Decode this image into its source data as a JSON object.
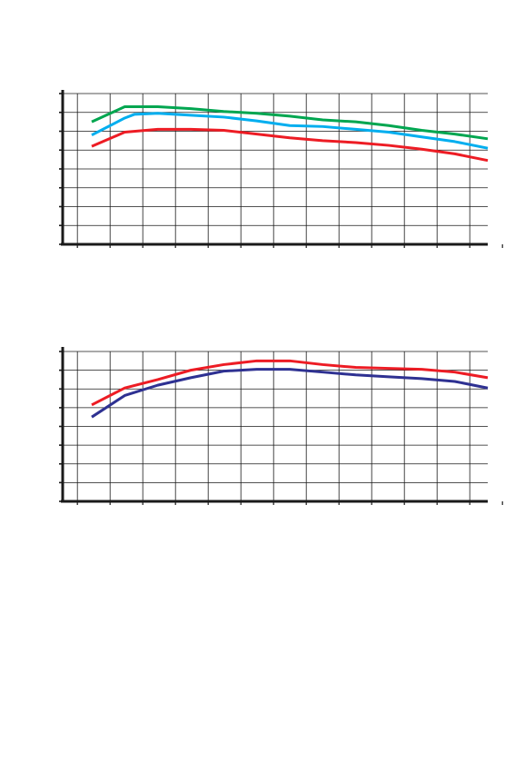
{
  "chart_data": [
    {
      "type": "line",
      "title": "",
      "xlabel": "",
      "ylabel": "",
      "grid": true,
      "x_ticks": 14,
      "ylim": [
        0,
        8
      ],
      "xlim": [
        0,
        12
      ],
      "series": [
        {
          "color": "#00a650",
          "x": [
            0,
            1,
            2,
            3,
            4,
            5,
            6,
            7,
            8,
            9,
            10,
            11,
            12
          ],
          "values": [
            6.5,
            7.3,
            7.3,
            7.2,
            7.05,
            6.95,
            6.8,
            6.6,
            6.5,
            6.3,
            6.05,
            5.85,
            5.6
          ]
        },
        {
          "color": "#00aeef",
          "x": [
            0,
            1,
            1.3,
            2,
            3,
            4,
            5,
            6,
            7,
            8,
            9,
            10,
            11,
            12
          ],
          "values": [
            5.8,
            6.7,
            6.9,
            6.95,
            6.85,
            6.75,
            6.55,
            6.3,
            6.25,
            6.1,
            5.95,
            5.7,
            5.45,
            5.1
          ]
        },
        {
          "color": "#ed1c24",
          "x": [
            0,
            1,
            2,
            3,
            4,
            5,
            6,
            7,
            8,
            9,
            10,
            11,
            12
          ],
          "values": [
            5.2,
            5.95,
            6.1,
            6.1,
            6.05,
            5.85,
            5.65,
            5.5,
            5.4,
            5.25,
            5.05,
            4.8,
            4.45
          ]
        }
      ]
    },
    {
      "type": "line",
      "title": "",
      "xlabel": "",
      "ylabel": "",
      "grid": true,
      "x_ticks": 14,
      "ylim": [
        0,
        8
      ],
      "xlim": [
        0,
        12
      ],
      "series": [
        {
          "color": "#ed1c24",
          "x": [
            0,
            1,
            2,
            3,
            4,
            5,
            6,
            7,
            8,
            9,
            10,
            11,
            12
          ],
          "values": [
            5.15,
            6.05,
            6.5,
            7.0,
            7.3,
            7.5,
            7.5,
            7.3,
            7.15,
            7.1,
            7.05,
            6.9,
            6.6
          ]
        },
        {
          "color": "#2e3192",
          "x": [
            0,
            1,
            2,
            3,
            4,
            5,
            6,
            7,
            8,
            9,
            10,
            11,
            12
          ],
          "values": [
            4.5,
            5.65,
            6.2,
            6.6,
            6.95,
            7.05,
            7.05,
            6.9,
            6.75,
            6.65,
            6.55,
            6.4,
            6.05
          ]
        }
      ]
    }
  ]
}
